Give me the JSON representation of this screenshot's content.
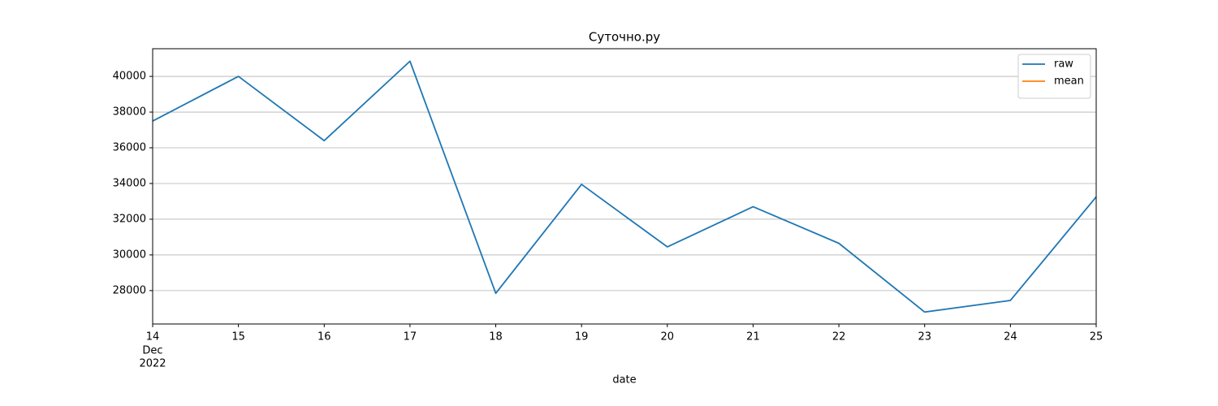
{
  "chart_data": {
    "type": "line",
    "title": "Суточно.ру",
    "xlabel": "date",
    "categories": [
      "14",
      "15",
      "16",
      "17",
      "18",
      "19",
      "20",
      "21",
      "22",
      "23",
      "24",
      "25"
    ],
    "first_tick_sublabels": [
      "Dec",
      "2022"
    ],
    "series": [
      {
        "name": "raw",
        "color": "#1f77b4",
        "values": [
          37500,
          40000,
          36400,
          40850,
          27850,
          33950,
          30450,
          32700,
          30650,
          26800,
          27450,
          33250
        ]
      },
      {
        "name": "mean",
        "color": "#ff7f0e",
        "values": [
          null,
          null,
          null,
          null,
          null,
          null,
          null,
          null,
          null,
          null,
          null,
          null
        ]
      }
    ],
    "ylim": [
      26130,
      41550
    ],
    "yticks": [
      28000,
      30000,
      32000,
      34000,
      36000,
      38000,
      40000
    ],
    "grid": "y",
    "legend": "upper right"
  }
}
